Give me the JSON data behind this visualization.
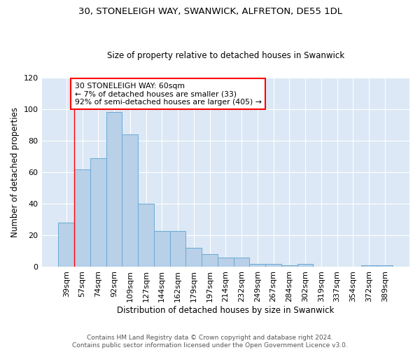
{
  "title_line1": "30, STONELEIGH WAY, SWANWICK, ALFRETON, DE55 1DL",
  "title_line2": "Size of property relative to detached houses in Swanwick",
  "xlabel": "Distribution of detached houses by size in Swanwick",
  "ylabel": "Number of detached properties",
  "bar_labels": [
    "39sqm",
    "57sqm",
    "74sqm",
    "92sqm",
    "109sqm",
    "127sqm",
    "144sqm",
    "162sqm",
    "179sqm",
    "197sqm",
    "214sqm",
    "232sqm",
    "249sqm",
    "267sqm",
    "284sqm",
    "302sqm",
    "319sqm",
    "337sqm",
    "354sqm",
    "372sqm",
    "389sqm"
  ],
  "bar_values": [
    28,
    62,
    69,
    98,
    84,
    40,
    23,
    23,
    12,
    8,
    6,
    6,
    2,
    2,
    1,
    2,
    0,
    0,
    0,
    1,
    1
  ],
  "bar_color": "#b8d0e8",
  "bar_edge_color": "#6aaad4",
  "background_color": "#dce8f5",
  "ylim": [
    0,
    120
  ],
  "annotation_text": "30 STONELEIGH WAY: 60sqm\n← 7% of detached houses are smaller (33)\n92% of semi-detached houses are larger (405) →",
  "footer_text": "Contains HM Land Registry data © Crown copyright and database right 2024.\nContains public sector information licensed under the Open Government Licence v3.0.",
  "redline_x": 0.5
}
